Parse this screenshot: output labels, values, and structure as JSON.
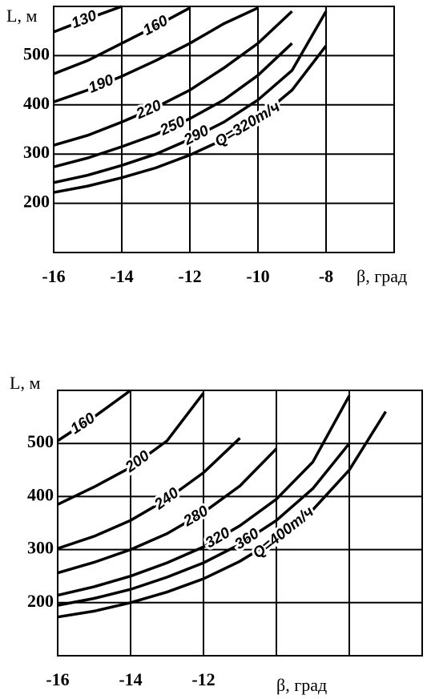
{
  "chart_data": [
    {
      "type": "line",
      "ylabel": "L, м",
      "xlabel": "β, град",
      "x": [
        -16,
        -15,
        -14,
        -13,
        -12,
        -11,
        -10,
        -9,
        -8,
        -7,
        -6
      ],
      "xlim": [
        -16,
        -6
      ],
      "ylim": [
        100,
        600
      ],
      "xticks": [
        -16,
        -14,
        -12,
        -10,
        -8
      ],
      "yticks": [
        200,
        300,
        400,
        500
      ],
      "grid": true,
      "series": [
        {
          "name": "130",
          "color": "#000000",
          "values": [
            548,
            575,
            600,
            null,
            null,
            null,
            null,
            null,
            null,
            null,
            null
          ]
        },
        {
          "name": "160",
          "color": "#000000",
          "values": [
            463,
            490,
            525,
            560,
            597,
            null,
            null,
            null,
            null,
            null,
            null
          ]
        },
        {
          "name": "190",
          "color": "#000000",
          "values": [
            406,
            430,
            458,
            490,
            525,
            565,
            597,
            null,
            null,
            null,
            null
          ]
        },
        {
          "name": "220",
          "color": "#000000",
          "values": [
            318,
            338,
            365,
            395,
            430,
            475,
            525,
            590,
            null,
            null,
            null
          ]
        },
        {
          "name": "250",
          "color": "#000000",
          "values": [
            274,
            292,
            315,
            340,
            372,
            410,
            460,
            525,
            null,
            null,
            null
          ]
        },
        {
          "name": "290",
          "color": "#000000",
          "values": [
            242,
            257,
            277,
            300,
            330,
            365,
            410,
            470,
            590,
            null,
            null
          ]
        },
        {
          "name": "Q=320т/ч",
          "color": "#000000",
          "values": [
            222,
            235,
            252,
            272,
            298,
            330,
            372,
            430,
            520,
            null,
            null
          ]
        }
      ]
    },
    {
      "type": "line",
      "ylabel": "L, м",
      "xlabel": "β, град",
      "x": [
        -16,
        -15,
        -14,
        -13,
        -12,
        -11,
        -10,
        -9,
        -8,
        -7,
        -6
      ],
      "xlim": [
        -16,
        -6
      ],
      "ylim": [
        100,
        600
      ],
      "xticks": [
        -16,
        -14,
        -12,
        {
          "value": -10,
          "label": null
        },
        {
          "value": -8,
          "label": null
        }
      ],
      "yticks": [
        200,
        300,
        400,
        500
      ],
      "grid": true,
      "series": [
        {
          "name": "160",
          "color": "#000000",
          "values": [
            505,
            550,
            600,
            null,
            null,
            null,
            null,
            null,
            null,
            null,
            null
          ]
        },
        {
          "name": "200",
          "color": "#000000",
          "values": [
            385,
            418,
            455,
            505,
            595,
            null,
            null,
            null,
            null,
            null,
            null
          ]
        },
        {
          "name": "240",
          "color": "#000000",
          "values": [
            302,
            325,
            355,
            395,
            445,
            510,
            null,
            null,
            null,
            null,
            null
          ]
        },
        {
          "name": "280",
          "color": "#000000",
          "values": [
            256,
            276,
            300,
            330,
            370,
            420,
            490,
            null,
            null,
            null,
            null
          ]
        },
        {
          "name": "320",
          "color": "#000000",
          "values": [
            214,
            230,
            250,
            275,
            305,
            345,
            395,
            465,
            590,
            null,
            null
          ]
        },
        {
          "name": "360",
          "color": "#000000",
          "values": [
            195,
            208,
            225,
            248,
            275,
            310,
            355,
            415,
            500,
            null,
            null
          ]
        },
        {
          "name": "Q=400т/ч",
          "color": "#000000",
          "values": [
            173,
            184,
            200,
            220,
            245,
            278,
            320,
            375,
            450,
            560,
            null
          ]
        }
      ]
    }
  ]
}
